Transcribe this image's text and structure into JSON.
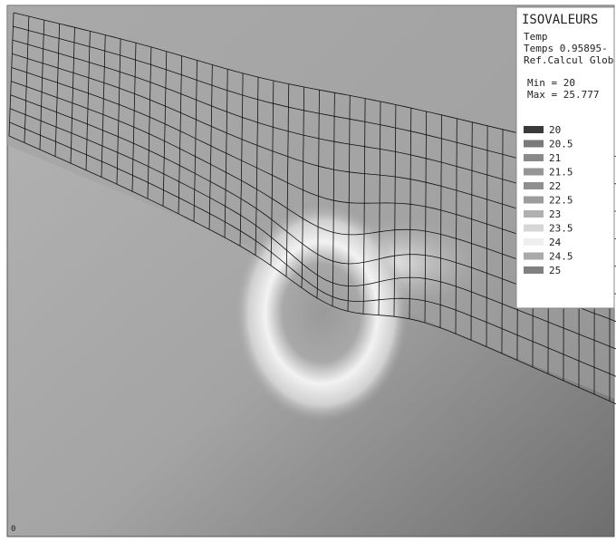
{
  "legend": {
    "title": "ISOVALEURS",
    "field": "Temp",
    "time": "Temps 0.95895-",
    "reference": "Ref.Calcul Glob",
    "min": "Min = 20",
    "max": "Max = 25.777",
    "levels": [
      {
        "label": "20",
        "color": "#3a3a3a"
      },
      {
        "label": "20.5",
        "color": "#7a7a7a"
      },
      {
        "label": "21",
        "color": "#8a8a8a"
      },
      {
        "label": "21.5",
        "color": "#959595"
      },
      {
        "label": "22",
        "color": "#8f8f8f"
      },
      {
        "label": "22.5",
        "color": "#9c9c9c"
      },
      {
        "label": "23",
        "color": "#b0b0b0"
      },
      {
        "label": "23.5",
        "color": "#d6d6d6"
      },
      {
        "label": "24",
        "color": "#eeeeee"
      },
      {
        "label": "24.5",
        "color": "#aaaaaa"
      },
      {
        "label": "25",
        "color": "#808080"
      }
    ]
  },
  "corner_label": "0"
}
